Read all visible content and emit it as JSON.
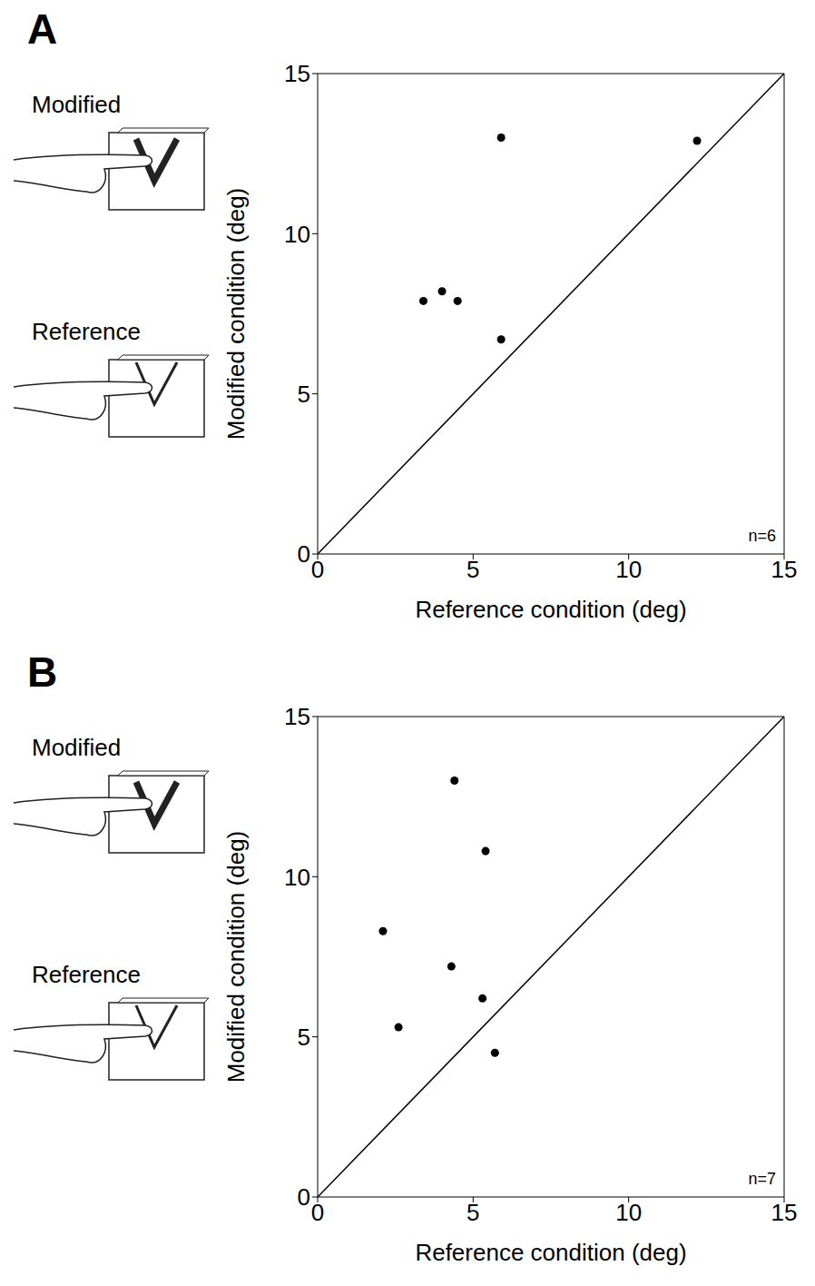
{
  "chart_data": [
    {
      "type": "scatter",
      "title": "A",
      "illustration_labels": [
        "Modified",
        "Reference"
      ],
      "annotation": "n=6",
      "x_label": "Reference condition (deg)",
      "y_label": "Modified condition (deg)",
      "x": [
        3.4,
        4.0,
        4.5,
        5.9,
        5.9,
        12.2
      ],
      "values": [
        7.9,
        8.2,
        7.9,
        13.0,
        6.7,
        12.9
      ],
      "color": "#000000",
      "marker": "circle",
      "xlim": [
        0,
        15
      ],
      "ylim": [
        0,
        15
      ],
      "xticks": [
        0,
        5,
        10,
        15
      ],
      "yticks": [
        0,
        5,
        10,
        15
      ],
      "grid": false
    },
    {
      "type": "scatter",
      "title": "B",
      "illustration_labels": [
        "Modified",
        "Reference"
      ],
      "annotation": "n=7",
      "x_label": "Reference condition (deg)",
      "y_label": "Modified condition (deg)",
      "x": [
        2.1,
        2.6,
        4.4,
        4.3,
        5.4,
        5.3,
        5.7
      ],
      "values": [
        8.3,
        5.3,
        13.0,
        7.2,
        10.8,
        6.2,
        4.5
      ],
      "color": "#000000",
      "marker": "circle",
      "xlim": [
        0,
        15
      ],
      "ylim": [
        0,
        15
      ],
      "xticks": [
        0,
        5,
        10,
        15
      ],
      "yticks": [
        0,
        5,
        10,
        15
      ],
      "grid": false
    }
  ]
}
